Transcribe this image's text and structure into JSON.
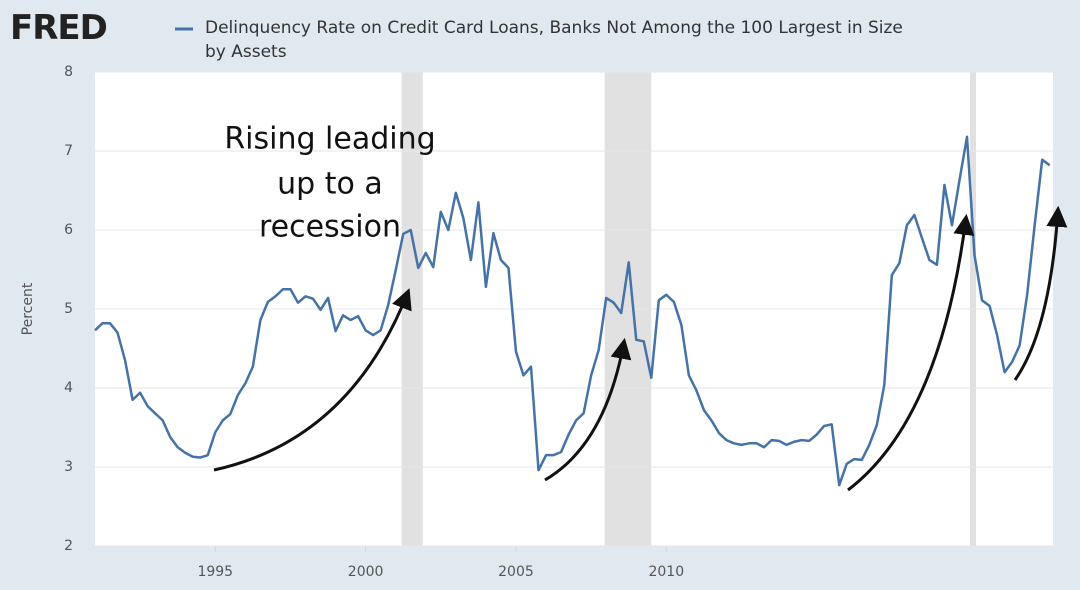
{
  "chart_data": {
    "type": "line",
    "logo": "FRED",
    "ylabel": "Percent",
    "annotation": [
      "Rising leading",
      "up to a",
      "recession"
    ],
    "xlim": [
      1991,
      2022.86
    ],
    "ylim": [
      2,
      8
    ],
    "xticks": [
      1995,
      2000,
      2005,
      2010
    ],
    "yticks": [
      2,
      3,
      4,
      5,
      6,
      7,
      8
    ],
    "grid": true,
    "recessions": [
      [
        2001.2,
        2001.9
      ],
      [
        2007.95,
        2009.5
      ],
      [
        2020.1,
        2020.3
      ]
    ],
    "x": [
      1991,
      1991.25,
      1991.5,
      1991.75,
      1992,
      1992.25,
      1992.5,
      1992.75,
      1993,
      1993.25,
      1993.5,
      1993.75,
      1994,
      1994.25,
      1994.5,
      1994.75,
      1995,
      1995.25,
      1995.5,
      1995.75,
      1996,
      1996.25,
      1996.5,
      1996.75,
      1997,
      1997.25,
      1997.5,
      1997.75,
      1998,
      1998.25,
      1998.5,
      1998.75,
      1999,
      1999.25,
      1999.5,
      1999.75,
      2000,
      2000.25,
      2000.5,
      2000.75,
      2001,
      2001.25,
      2001.5,
      2001.75,
      2002,
      2002.25,
      2002.5,
      2002.75,
      2003,
      2003.25,
      2003.5,
      2003.75,
      2004,
      2004.25,
      2004.5,
      2004.75,
      2005,
      2005.25,
      2005.5,
      2005.75,
      2006,
      2006.25,
      2006.5,
      2006.75,
      2007,
      2007.25,
      2007.5,
      2007.75,
      2008,
      2008.25,
      2008.5,
      2008.75,
      2009,
      2009.25,
      2009.5,
      2009.75,
      2010,
      2010.25,
      2010.5,
      2010.75,
      2011,
      2011.25,
      2011.5,
      2011.75,
      2012,
      2012.25,
      2012.5,
      2012.75,
      2013,
      2013.25,
      2013.5,
      2013.75,
      2014,
      2014.25,
      2014.5,
      2014.75,
      2015,
      2015.25,
      2015.5,
      2015.75,
      2016,
      2016.25,
      2016.5,
      2016.75,
      2017,
      2017.25,
      2017.5,
      2017.75,
      2018,
      2018.25,
      2018.5,
      2018.75,
      2019,
      2019.25,
      2019.5,
      2019.75,
      2020,
      2020.25,
      2020.5,
      2020.75,
      2021,
      2021.25,
      2021.5,
      2021.75,
      2022,
      2022.25,
      2022.5,
      2022.75
    ],
    "series": [
      {
        "name": "Delinquency Rate on Credit Card Loans, Banks Not Among the 100 Largest in Size by Assets",
        "color": "#4572a7",
        "values": [
          4.73,
          4.82,
          4.82,
          4.7,
          4.35,
          3.85,
          3.94,
          3.77,
          3.68,
          3.59,
          3.38,
          3.25,
          3.18,
          3.13,
          3.12,
          3.15,
          3.44,
          3.59,
          3.67,
          3.91,
          4.06,
          4.27,
          4.86,
          5.09,
          5.16,
          5.25,
          5.25,
          5.08,
          5.16,
          5.13,
          4.99,
          5.14,
          4.72,
          4.92,
          4.86,
          4.91,
          4.73,
          4.67,
          4.73,
          5.05,
          5.49,
          5.95,
          6.0,
          5.52,
          5.71,
          5.53,
          6.23,
          6.0,
          6.47,
          6.15,
          5.62,
          6.35,
          5.28,
          5.96,
          5.62,
          5.52,
          4.46,
          4.16,
          4.27,
          2.96,
          3.15,
          3.15,
          3.19,
          3.41,
          3.59,
          3.68,
          4.16,
          4.48,
          5.14,
          5.08,
          4.95,
          5.59,
          4.61,
          4.59,
          4.13,
          5.11,
          5.18,
          5.09,
          4.8,
          4.16,
          3.97,
          3.72,
          3.59,
          3.43,
          3.34,
          3.3,
          3.28,
          3.3,
          3.3,
          3.25,
          3.34,
          3.33,
          3.28,
          3.32,
          3.34,
          3.33,
          3.41,
          3.52,
          3.54,
          2.77,
          3.04,
          3.1,
          3.09,
          3.28,
          3.53,
          4.04,
          5.43,
          5.58,
          6.06,
          6.19,
          5.9,
          5.62,
          5.56,
          6.57,
          6.06,
          6.63,
          7.18,
          5.68,
          5.11,
          5.04,
          4.67,
          4.2,
          4.33,
          4.54,
          5.18,
          6.06,
          6.89,
          6.82
        ]
      }
    ]
  }
}
